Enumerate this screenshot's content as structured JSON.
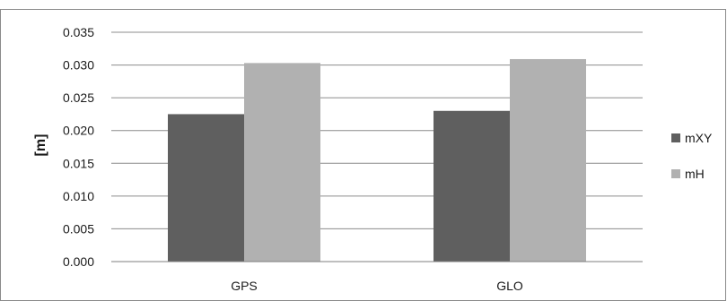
{
  "chart_data": {
    "type": "bar",
    "categories": [
      "GPS",
      "GLO"
    ],
    "series": [
      {
        "name": "mXY",
        "values": [
          0.0225,
          0.023
        ],
        "color": "#5f5f5f"
      },
      {
        "name": "mH",
        "values": [
          0.0303,
          0.0309
        ],
        "color": "#b1b1b1"
      }
    ],
    "ylabel": "[m]",
    "xlabel": "",
    "ylim": [
      0,
      0.035
    ],
    "yticks": [
      "0.000",
      "0.005",
      "0.010",
      "0.015",
      "0.020",
      "0.025",
      "0.030",
      "0.035"
    ],
    "grid": true,
    "legend": "right"
  }
}
